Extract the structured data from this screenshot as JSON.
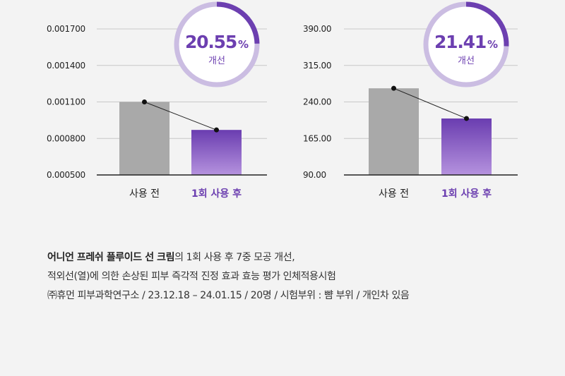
{
  "colors": {
    "before_bar": "#a9a9a9",
    "after_bar_top": "#6a3db0",
    "after_bar_bottom": "#b592de",
    "accent": "#6c3fb0",
    "ring_track": "#cbbde2",
    "ring_fill": "#6c3fb0"
  },
  "chart_data": [
    {
      "type": "bar",
      "categories": [
        "사용 전",
        "1회 사용 후"
      ],
      "values": [
        0.0011,
        0.00087
      ],
      "ylim": [
        0.0005,
        0.0017
      ],
      "yticks": [
        "0.001700",
        "0.001400",
        "0.001100",
        "0.000800",
        "0.000500"
      ],
      "ytick_values": [
        0.0017,
        0.0014,
        0.0011,
        0.0008,
        0.0005
      ],
      "badge": {
        "value": "20.55",
        "unit": "%",
        "label": "개선",
        "fraction": 0.2055
      },
      "grid": true
    },
    {
      "type": "bar",
      "categories": [
        "사용 전",
        "1회 사용 후"
      ],
      "values": [
        268,
        206
      ],
      "ylim": [
        90,
        390
      ],
      "yticks": [
        "390.00",
        "315.00",
        "240.00",
        "165.00",
        "90.00"
      ],
      "ytick_values": [
        390,
        315,
        240,
        165,
        90
      ],
      "badge": {
        "value": "21.41",
        "unit": "%",
        "label": "개선",
        "fraction": 0.2141
      },
      "grid": true
    }
  ],
  "footnote": {
    "line1_bold": "어니언 프레쉬 플루이드 선 크림",
    "line1_rest": "의 1회 사용 후 7중 모공 개선,",
    "line2": "적외선(열)에 의한 손상된 피부 즉각적 진정 효과 효능 평가 인체적용시험",
    "line3": "㈜휴먼 피부과학연구소 / 23.12.18 – 24.01.15 / 20명 / 시험부위 : 뺨 부위 / 개인차 있음"
  }
}
